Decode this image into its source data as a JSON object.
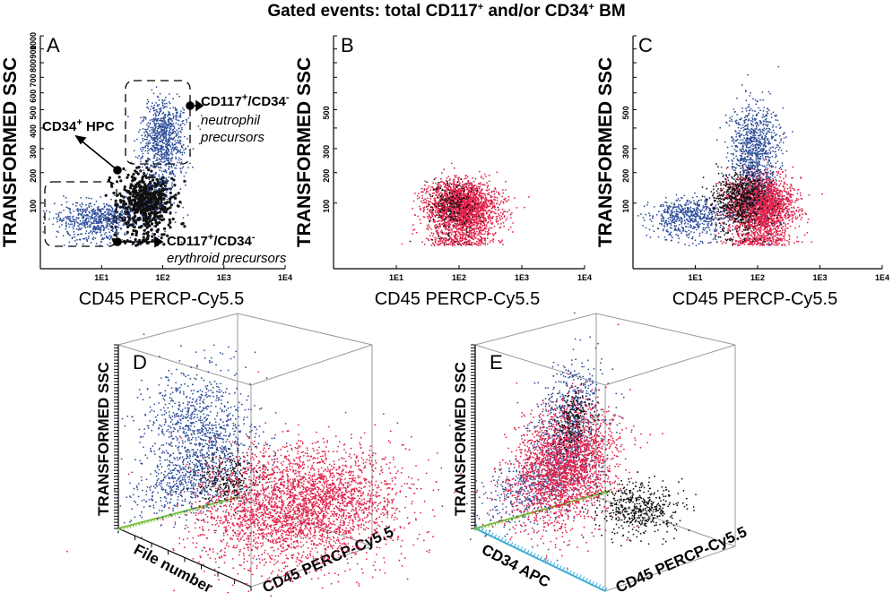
{
  "figure": {
    "title_parts": [
      "Gated events: total CD117",
      "+",
      " and/or CD34",
      "+",
      " BM"
    ]
  },
  "colors": {
    "blue": "#2f4f9a",
    "black": "#111111",
    "red": "#e0224a",
    "green": "#7ac142",
    "cyan": "#3aaed8",
    "box": "#999999"
  },
  "chart_data": [
    {
      "panel": "A",
      "type": "scatter",
      "xlabel": "CD45 PERCP-Cy5.5",
      "ylabel": "TRANSFORMED SSC",
      "x_scale": "log",
      "xlim": [
        1,
        10000
      ],
      "ylim": [
        0,
        1000
      ],
      "xticks": [
        "1E1",
        "1E2",
        "1E3",
        "1E4"
      ],
      "yticks": [
        "100",
        "200",
        "300",
        "400",
        "500",
        "600",
        "700",
        "800",
        "900",
        "1000"
      ],
      "series": [
        {
          "name": "CD34+ HPC",
          "color": "#111111",
          "center": [
            50,
            100
          ],
          "spread": [
            0.22,
            45
          ],
          "n": 650
        },
        {
          "name": "CD117+/CD34- neutrophil precursors",
          "color": "#2f4f9a",
          "center": [
            100,
            330
          ],
          "spread": [
            0.18,
            110
          ],
          "n": 900
        },
        {
          "name": "CD117+/CD34- erythroid precursors",
          "color": "#2f4f9a",
          "center": [
            8,
            60
          ],
          "spread": [
            0.32,
            22
          ],
          "n": 650
        }
      ],
      "annotations": [
        {
          "text": "CD34",
          "sup": "+",
          "text2": " HPC"
        },
        {
          "text": "CD117",
          "sup": "+",
          "text2": "/CD34",
          "sup2": "-",
          "italic": "neutrophil",
          "italic2": "precursors"
        },
        {
          "text": "CD117",
          "sup": "+",
          "text2": "/CD34",
          "sup2": "-",
          "italic": "erythroid precursors"
        }
      ]
    },
    {
      "panel": "B",
      "type": "scatter",
      "xlabel": "CD45 PERCP-Cy5.5",
      "ylabel": "TRANSFORMED SSC",
      "x_scale": "log",
      "xlim": [
        1,
        10000
      ],
      "ylim": [
        0,
        1000
      ],
      "xticks": [
        "1E1",
        "1E2",
        "1E3",
        "1E4"
      ],
      "series": [
        {
          "name": "",
          "color": "#e0224a",
          "center": [
            110,
            85
          ],
          "spread": [
            0.28,
            40
          ],
          "n": 2600
        },
        {
          "name": "",
          "color": "#111111",
          "center": [
            80,
            85
          ],
          "spread": [
            0.2,
            38
          ],
          "n": 220
        }
      ]
    },
    {
      "panel": "C",
      "type": "scatter",
      "xlabel": "CD45 PERCP-Cy5.5",
      "ylabel": "TRANSFORMED SSC",
      "x_scale": "log",
      "xlim": [
        1,
        10000
      ],
      "ylim": [
        0,
        1000
      ],
      "xticks": [
        "1E1",
        "1E2",
        "1E3",
        "1E4"
      ],
      "series": [
        {
          "name": "",
          "color": "#e0224a",
          "center": [
            110,
            90
          ],
          "spread": [
            0.26,
            45
          ],
          "n": 2600
        },
        {
          "name": "",
          "color": "#2f4f9a",
          "center": [
            90,
            300
          ],
          "spread": [
            0.2,
            110
          ],
          "n": 900
        },
        {
          "name": "",
          "color": "#2f4f9a",
          "center": [
            8,
            65
          ],
          "spread": [
            0.32,
            22
          ],
          "n": 600
        },
        {
          "name": "",
          "color": "#111111",
          "center": [
            50,
            110
          ],
          "spread": [
            0.22,
            45
          ],
          "n": 650
        }
      ]
    },
    {
      "panel": "D",
      "type": "scatter",
      "three_d": true,
      "axis_labels": {
        "y": "TRANSFORMED SSC",
        "x": "File number",
        "z": "CD45 PERCP-Cy5.5"
      }
    },
    {
      "panel": "E",
      "type": "scatter",
      "three_d": true,
      "axis_labels": {
        "y": "TRANSFORMED SSC",
        "x": "CD34 APC",
        "z": "CD45 PERCP-Cy5.5"
      }
    }
  ],
  "panels": {
    "a": "A",
    "b": "B",
    "c": "C",
    "d": "D",
    "e": "E"
  },
  "axis_text": {
    "xlabel": "CD45 PERCP-Cy5.5",
    "ylabel": "TRANSFORMED SSC",
    "yticks": [
      "100",
      "200",
      "300",
      "400",
      "500",
      "600",
      "700",
      "800",
      "900",
      "1000"
    ],
    "xticks": [
      "1E1",
      "1E2",
      "1E3",
      "1E4"
    ],
    "d_x": "File number",
    "e_x": "CD34 APC",
    "z": "CD45 PERCP-Cy5.5"
  }
}
